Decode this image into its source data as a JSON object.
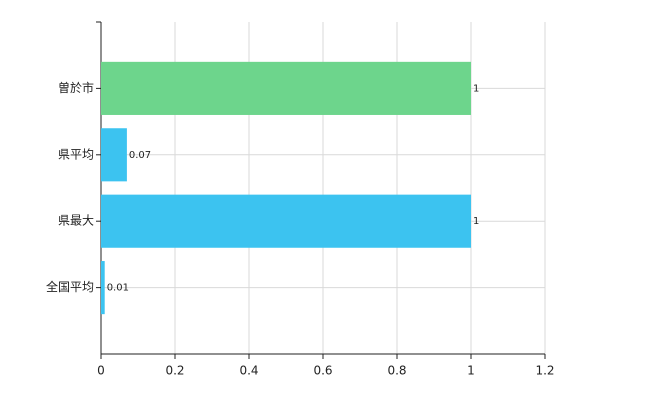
{
  "chart_data": {
    "type": "bar",
    "orientation": "horizontal",
    "categories": [
      "曽於市",
      "県平均",
      "県最大",
      "全国平均"
    ],
    "values": [
      1,
      0.07,
      1,
      0.01
    ],
    "colors": [
      "#6dd58c",
      "#3cc3f0",
      "#3cc3f0",
      "#3cc3f0"
    ],
    "xlim": [
      0,
      1.2
    ],
    "xticks": [
      0,
      0.2,
      0.4,
      0.6,
      0.8,
      1,
      1.2
    ],
    "grid": true
  }
}
